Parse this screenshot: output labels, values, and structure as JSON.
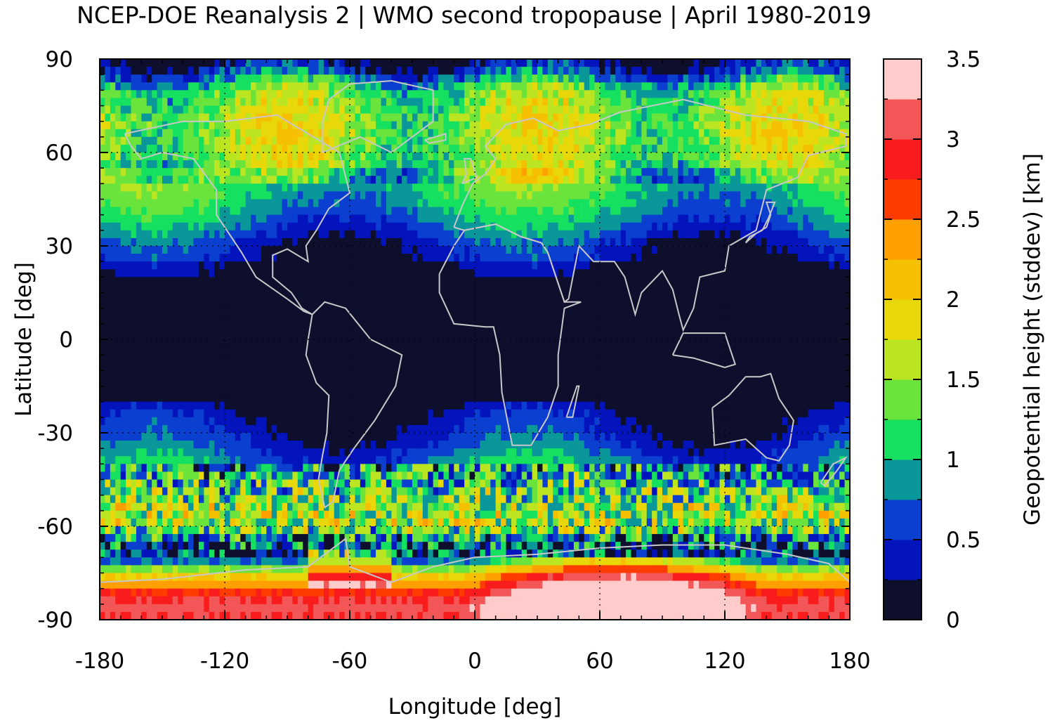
{
  "chart_data": {
    "type": "heatmap",
    "title": "NCEP-DOE Reanalysis 2 | WMO second tropopause | April 1980-2019",
    "xlabel": "Longitude [deg]",
    "ylabel": "Latitude [deg]",
    "colorbar_label": "Geopotential height (stddev) [km]",
    "xlim": [
      -180,
      180
    ],
    "ylim": [
      -90,
      90
    ],
    "xticks": [
      -180,
      -120,
      -60,
      0,
      60,
      120,
      180
    ],
    "yticks": [
      -90,
      -60,
      -30,
      0,
      30,
      60,
      90
    ],
    "clim": [
      0,
      3.5
    ],
    "colorbar_ticks": [
      "0",
      "0.5",
      "1",
      "1.5",
      "2",
      "2.5",
      "3",
      "3.5"
    ],
    "grid": true,
    "colormap": [
      "#0e0f2d",
      "#0414bd",
      "#0a3fd0",
      "#0a9799",
      "#15e05f",
      "#6ae43c",
      "#bce521",
      "#e8d80a",
      "#f5c000",
      "#ffa000",
      "#ff3c00",
      "#f81c1c",
      "#f25656",
      "#ffcbcb"
    ],
    "zonal_profile": {
      "description_lat": [
        90,
        80,
        70,
        60,
        50,
        40,
        30,
        25,
        20,
        10,
        0,
        -10,
        -20,
        -25,
        -30,
        -40,
        -50,
        -55,
        -60,
        -65,
        -70,
        -75,
        -80,
        -85,
        -90
      ],
      "mean_value": [
        0.1,
        1.3,
        1.6,
        1.5,
        1.2,
        0.9,
        0.4,
        0.3,
        0.1,
        0.05,
        0.05,
        0.05,
        0.05,
        0.3,
        0.4,
        0.8,
        1.3,
        1.6,
        1.5,
        0.6,
        0.4,
        1.8,
        2.6,
        3.1,
        3.0
      ]
    }
  }
}
